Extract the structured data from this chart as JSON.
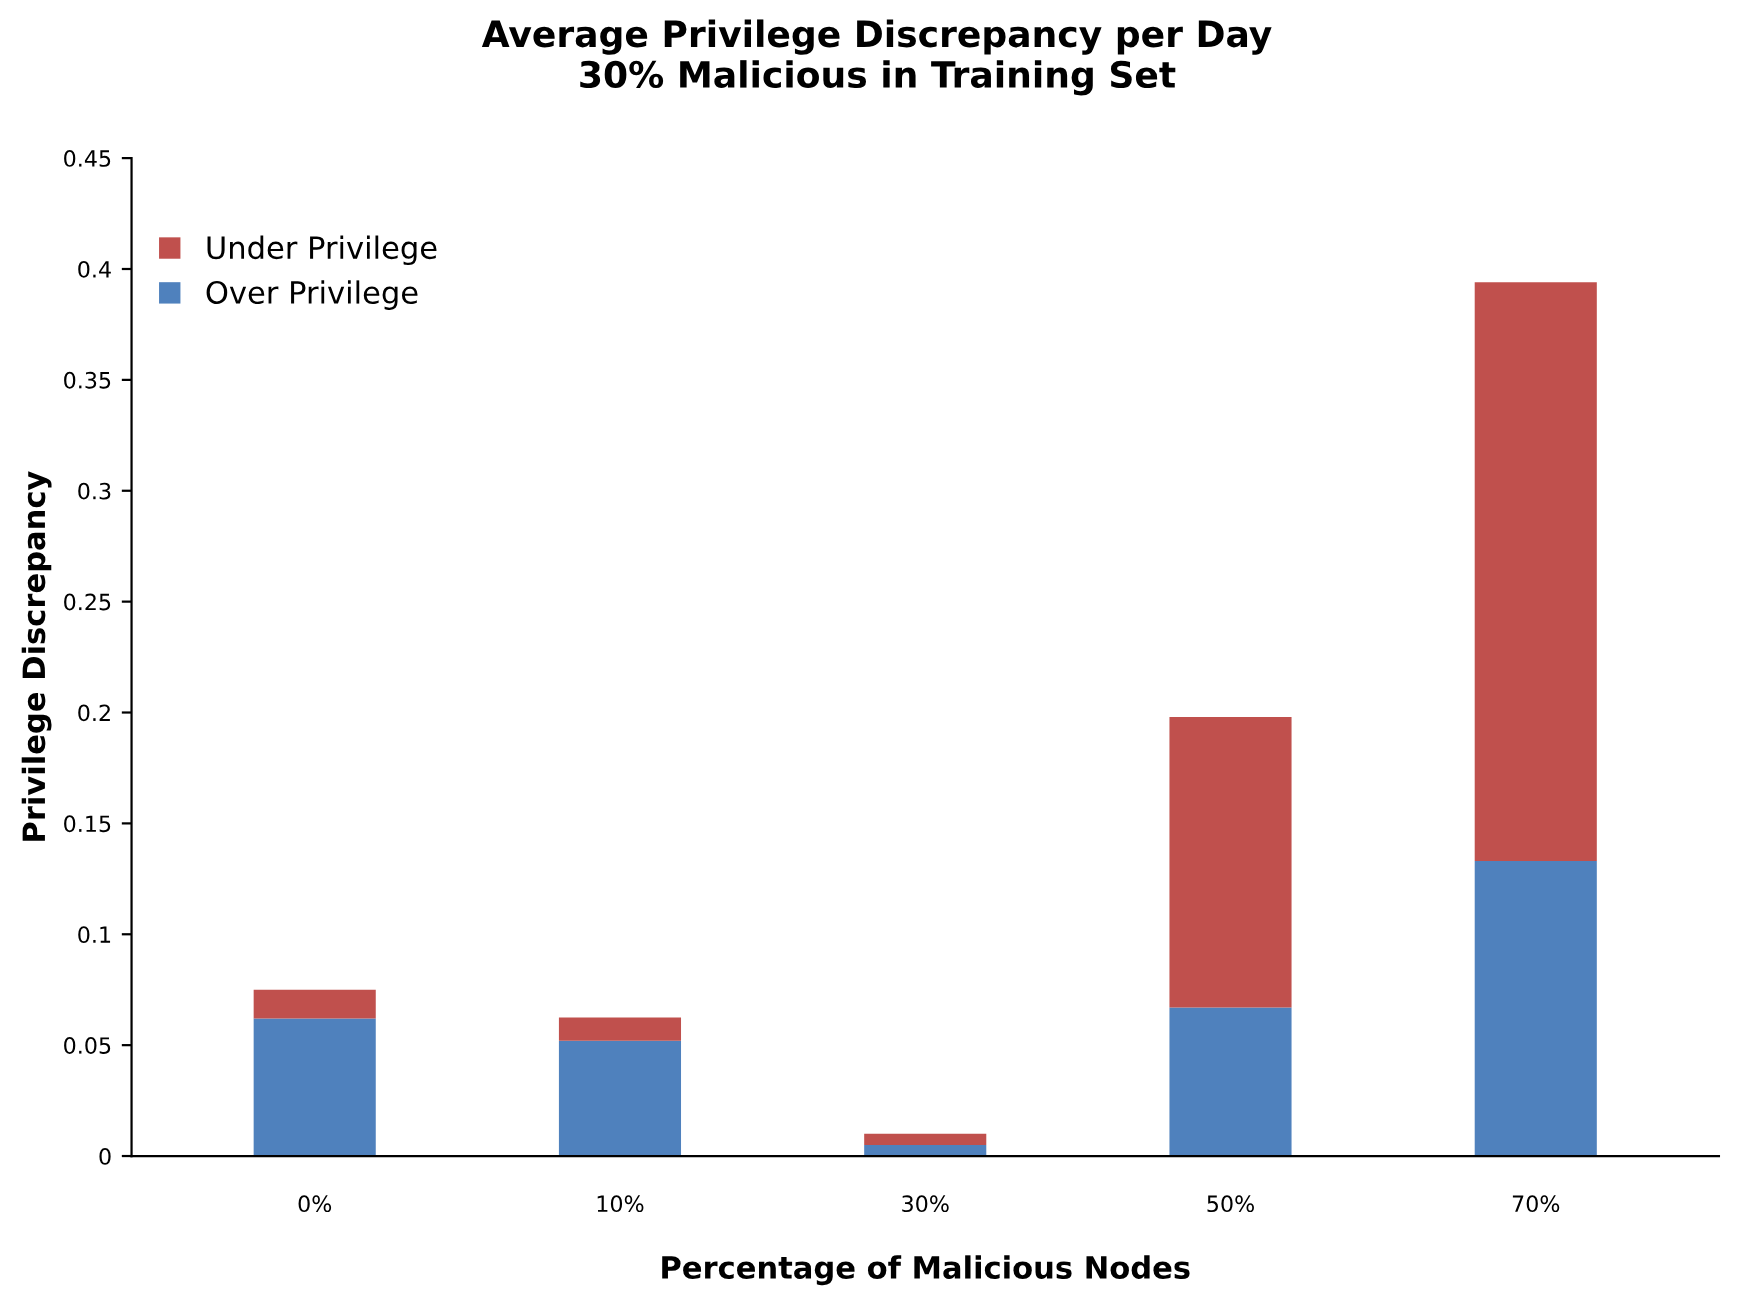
{
  "chart_data": {
    "type": "bar",
    "title": "Average Privilege Discrepancy per Day\n30% Malicious in Training Set",
    "xlabel": "Percentage of Malicious Nodes",
    "ylabel": "Privilege Discrepancy",
    "categories": [
      "0%",
      "10%",
      "30%",
      "50%",
      "70%"
    ],
    "stacked": true,
    "series": [
      {
        "name": "Over Privilege",
        "color": "#4f81bd",
        "values": [
          0.062,
          0.052,
          0.005,
          0.067,
          0.133
        ]
      },
      {
        "name": "Under Privilege",
        "color": "#c0504d",
        "values": [
          0.013,
          0.0105,
          0.005,
          0.131,
          0.261
        ]
      }
    ],
    "ylim": [
      0,
      0.45
    ],
    "yticks": [
      0,
      0.05,
      0.1,
      0.15,
      0.2,
      0.25,
      0.3,
      0.35,
      0.4,
      0.45
    ],
    "legend": "top left"
  }
}
